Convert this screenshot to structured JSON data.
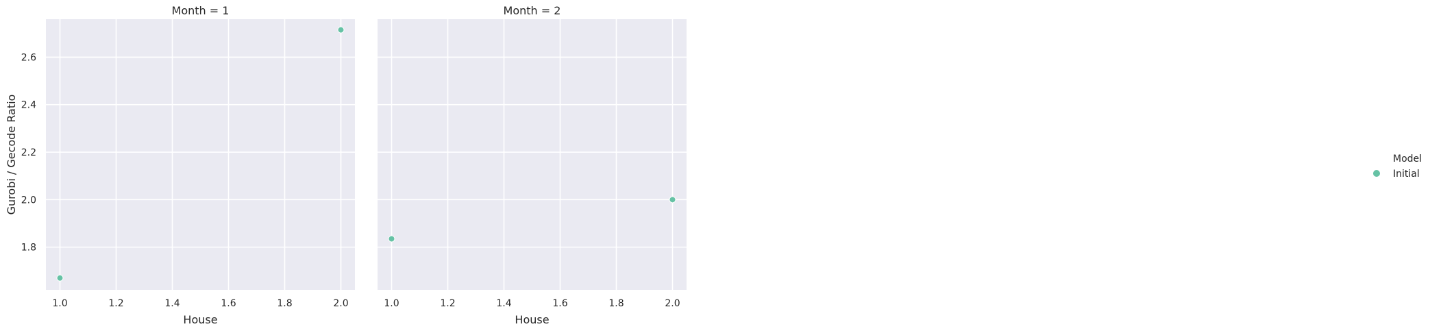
{
  "chart_data": {
    "type": "scatter",
    "xlabel": "House",
    "ylabel": "Gurobi / Gecode Ratio",
    "xlim": [
      0.95,
      2.05
    ],
    "ylim": [
      1.62,
      2.76
    ],
    "xticks": [
      1.0,
      1.2,
      1.4,
      1.6,
      1.8,
      2.0
    ],
    "xtick_labels": [
      "1.0",
      "1.2",
      "1.4",
      "1.6",
      "1.8",
      "2.0"
    ],
    "yticks": [
      1.8,
      2.0,
      2.2,
      2.4,
      2.6
    ],
    "ytick_labels": [
      "1.8",
      "2.0",
      "2.2",
      "2.4",
      "2.6"
    ],
    "grid": true,
    "legend_position": "right",
    "legend": {
      "title": "Model",
      "entries": [
        {
          "label": "Initial",
          "color": "#66c2a5"
        }
      ]
    },
    "panels": [
      {
        "title": "Month = 1",
        "series": [
          {
            "name": "Initial",
            "color": "#66c2a5",
            "x": [
              1.0,
              2.0
            ],
            "y": [
              1.67,
              2.715
            ]
          }
        ]
      },
      {
        "title": "Month = 2",
        "series": [
          {
            "name": "Initial",
            "color": "#66c2a5",
            "x": [
              1.0,
              2.0
            ],
            "y": [
              1.835,
              2.0
            ]
          }
        ]
      }
    ]
  }
}
